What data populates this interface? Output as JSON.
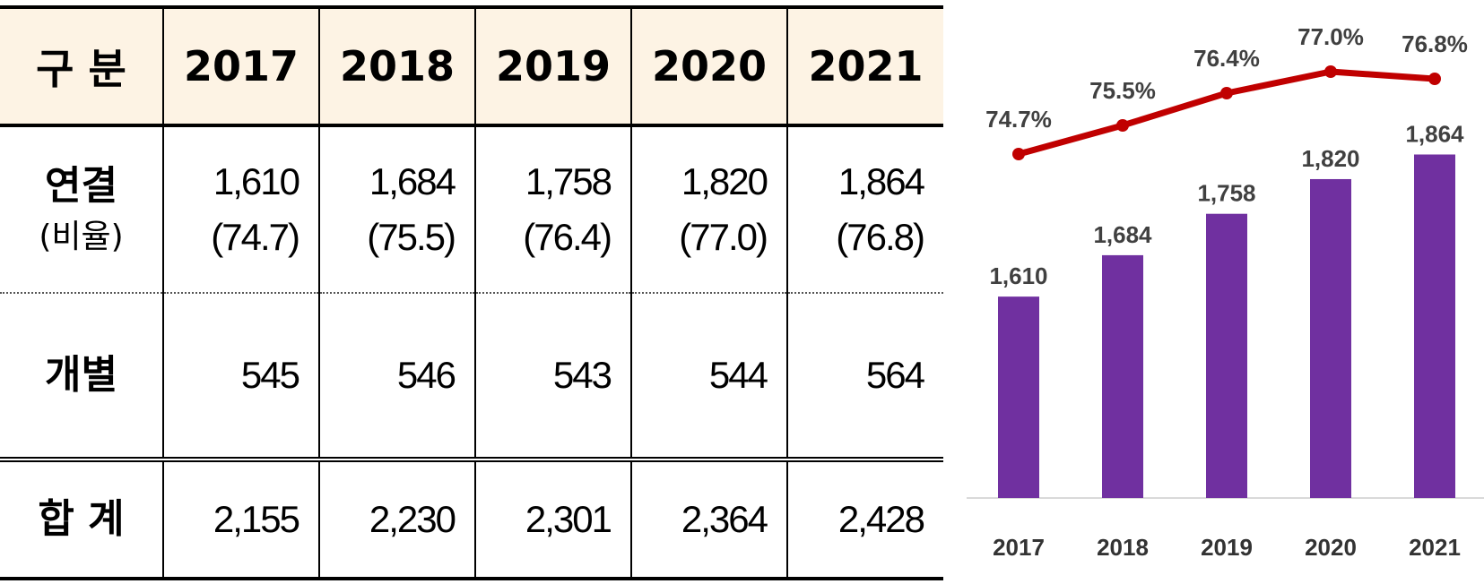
{
  "table": {
    "header": {
      "label": "구 분",
      "years": [
        "2017",
        "2018",
        "2019",
        "2020",
        "2021"
      ]
    },
    "rows": {
      "linked": {
        "label": "연결",
        "sublabel": "(비율)",
        "values": [
          "1,610",
          "1,684",
          "1,758",
          "1,820",
          "1,864"
        ],
        "ratios": [
          "(74.7)",
          "(75.5)",
          "(76.4)",
          "(77.0)",
          "(76.8)"
        ]
      },
      "individual": {
        "label": "개별",
        "values": [
          "545",
          "546",
          "543",
          "544",
          "564"
        ]
      },
      "total": {
        "label": "합 계",
        "values": [
          "2,155",
          "2,230",
          "2,301",
          "2,364",
          "2,428"
        ]
      }
    }
  },
  "chart_data": {
    "type": "bar",
    "categories": [
      "2017",
      "2018",
      "2019",
      "2020",
      "2021"
    ],
    "series": [
      {
        "name": "연결",
        "type": "bar",
        "values": [
          1610,
          1684,
          1758,
          1820,
          1864
        ],
        "labels": [
          "1,610",
          "1,684",
          "1,758",
          "1,820",
          "1,864"
        ],
        "color": "#7030a0"
      },
      {
        "name": "비율",
        "type": "line",
        "values": [
          74.7,
          75.5,
          76.4,
          77.0,
          76.8
        ],
        "labels": [
          "74.7%",
          "75.5%",
          "76.4%",
          "77.0%",
          "76.8%"
        ],
        "color": "#c00000"
      }
    ],
    "title": "",
    "xlabel": "",
    "ylabel": "",
    "ylim_bar": [
      1250,
      1900
    ],
    "ylim_line": [
      72,
      78
    ],
    "grid": false
  }
}
